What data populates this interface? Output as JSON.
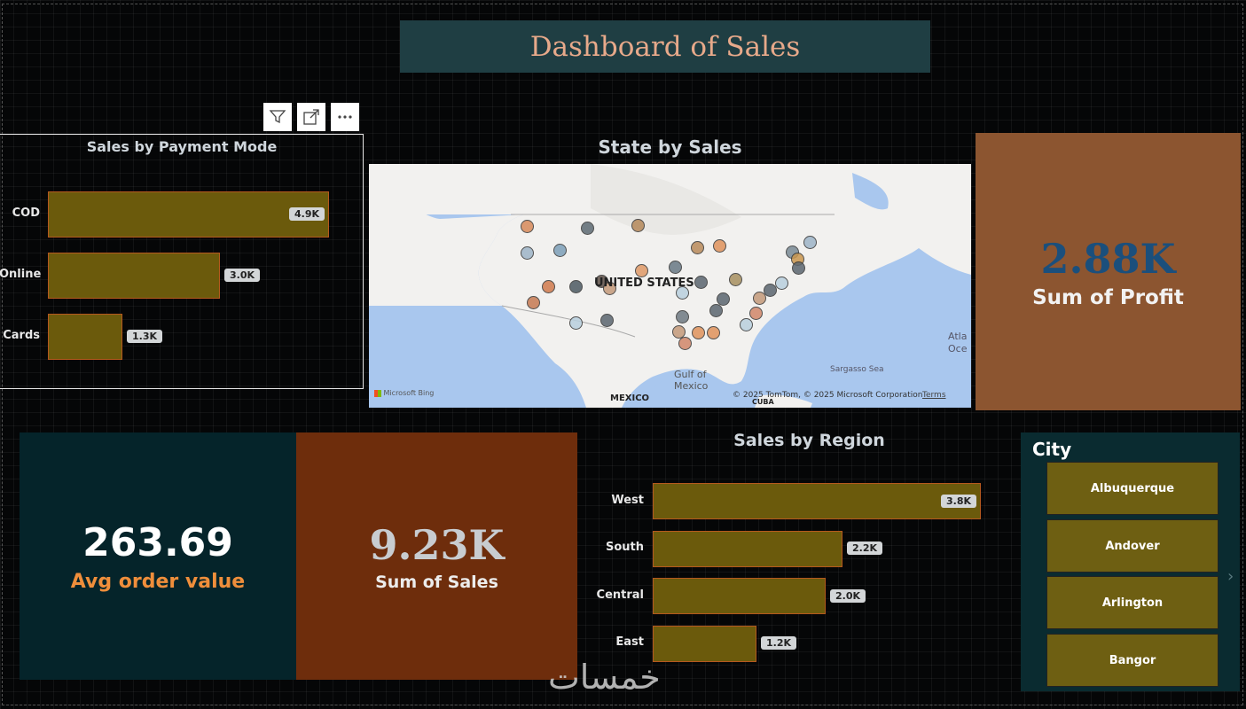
{
  "title": "Dashboard of Sales",
  "header_icons": [
    "filter-icon",
    "focus-mode-icon",
    "more-options-icon"
  ],
  "payment": {
    "title": "Sales by Payment Mode",
    "chart_data": {
      "type": "bar",
      "orientation": "horizontal",
      "categories": [
        "COD",
        "Online",
        "Cards"
      ],
      "values": [
        4.9,
        3.0,
        1.3
      ],
      "value_labels": [
        "4.9K",
        "3.0K",
        "1.3K"
      ],
      "xlim": [
        0,
        4.9
      ]
    }
  },
  "map": {
    "title": "State by Sales",
    "country_label": "UNITED STATES",
    "gulf_label": "Gulf of\nMexico",
    "mexico_label": "MEXICO",
    "cuba_label": "CUBA",
    "sargasso_label": "Sargasso Sea",
    "atlantic_label": "Atla\nOce",
    "bing_label": "Microsoft Bing",
    "copyright": "© 2025 TomTom, © 2025 Microsoft Corporation",
    "terms": "Terms"
  },
  "profit": {
    "value": "2.88K",
    "label": "Sum of Profit"
  },
  "avg": {
    "value": "263.69",
    "label": "Avg order value"
  },
  "sales": {
    "value": "9.23K",
    "label": "Sum of Sales"
  },
  "region": {
    "title": "Sales by Region",
    "chart_data": {
      "type": "bar",
      "orientation": "horizontal",
      "categories": [
        "West",
        "South",
        "Central",
        "East"
      ],
      "values": [
        3.8,
        2.2,
        2.0,
        1.2
      ],
      "value_labels": [
        "3.8K",
        "2.2K",
        "2.0K",
        "1.2K"
      ],
      "xlim": [
        0,
        3.8
      ]
    }
  },
  "city": {
    "title": "City",
    "items": [
      "Albuquerque",
      "Andover",
      "Arlington",
      "Bangor"
    ]
  },
  "watermark": "خمسات",
  "colors": {
    "bar": "#6b5a0c",
    "bar_border": "#b5591e",
    "profit_bg": "#8c5530",
    "sales_bg": "#6e2d0c",
    "avg_bg": "#05242a"
  }
}
